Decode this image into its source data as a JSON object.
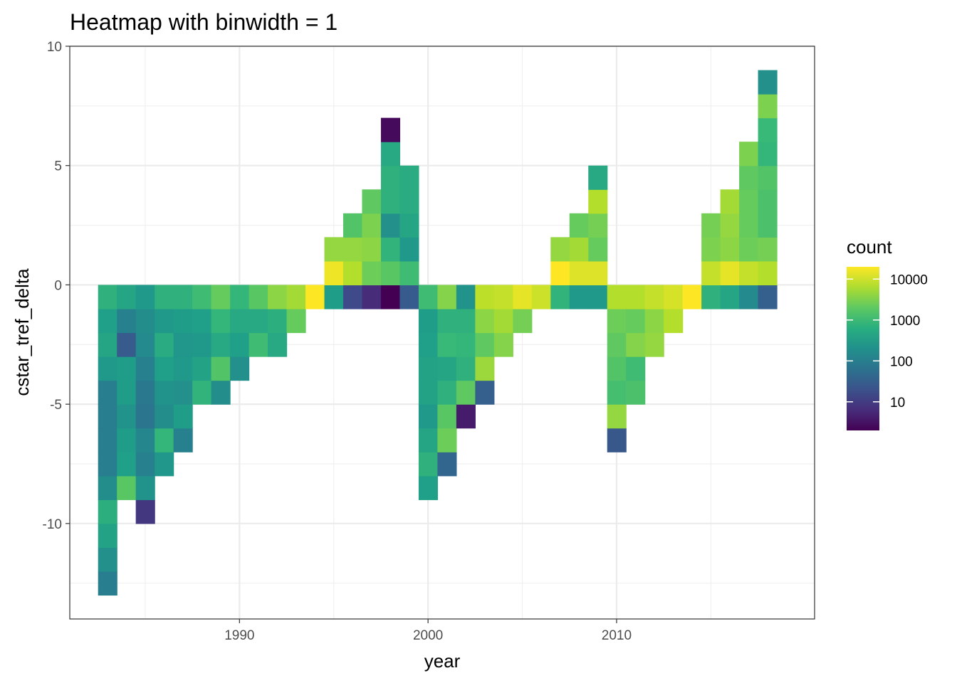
{
  "chart_data": {
    "type": "heatmap",
    "title": "Heatmap with binwidth = 1",
    "xlabel": "year",
    "ylabel": "cstar_tref_delta",
    "xlim": [
      1981.0,
      2020.5
    ],
    "ylim": [
      -14.0,
      10.0
    ],
    "x_ticks": [
      1990,
      2000,
      2010
    ],
    "y_ticks": [
      10,
      5,
      0,
      -5,
      -10
    ],
    "y_tick_labels": [
      "10",
      "5",
      "0",
      "-5",
      "-10"
    ],
    "grid": true,
    "bin_width": 1,
    "color_scale": "viridis (log10 count)",
    "legend": {
      "title": "count",
      "labels": [
        "10000",
        "1000",
        "100",
        "10"
      ],
      "values": [
        10000,
        1000,
        100,
        10
      ],
      "placement": "right"
    },
    "columns": [
      {
        "year": 1983,
        "y_min": -13,
        "log_counts": [
          2.0,
          2.3,
          2.6,
          2.8,
          2.25,
          2.0,
          2.0,
          2.0,
          2.0,
          2.45,
          2.65,
          2.55,
          2.85
        ]
      },
      {
        "year": 1984,
        "y_min": -9,
        "log_counts": [
          3.25,
          2.55,
          2.5,
          2.35,
          2.5,
          2.5,
          1.45,
          2.05,
          2.65
        ]
      },
      {
        "year": 1985,
        "y_min": -10,
        "log_counts": [
          0.95,
          2.35,
          2.05,
          2.15,
          1.85,
          1.9,
          2.05,
          2.2,
          2.25,
          2.45
        ]
      },
      {
        "year": 1986,
        "y_min": -8,
        "log_counts": [
          2.4,
          2.95,
          2.25,
          2.35,
          2.55,
          2.75,
          2.45,
          2.85
        ]
      },
      {
        "year": 1987,
        "y_min": -7,
        "log_counts": [
          2.05,
          2.5,
          2.3,
          2.45,
          2.4,
          2.5,
          2.85
        ]
      },
      {
        "year": 1988,
        "y_min": -5,
        "log_counts": [
          2.9,
          2.6,
          2.45,
          2.55,
          3.05
        ]
      },
      {
        "year": 1989,
        "y_min": -5,
        "log_counts": [
          2.25,
          3.2,
          2.7,
          2.95,
          3.35
        ]
      },
      {
        "year": 1990,
        "y_min": -4,
        "log_counts": [
          2.3,
          2.55,
          2.7,
          2.95
        ]
      },
      {
        "year": 1991,
        "y_min": -3,
        "log_counts": [
          3.05,
          2.7,
          3.25
        ]
      },
      {
        "year": 1992,
        "y_min": -3,
        "log_counts": [
          2.7,
          2.8,
          3.6
        ]
      },
      {
        "year": 1993,
        "y_min": -2,
        "log_counts": [
          3.35,
          3.75
        ]
      },
      {
        "year": 1994,
        "y_min": -1,
        "log_counts": [
          4.3
        ]
      },
      {
        "year": 1995,
        "y_min": -1,
        "log_counts": [
          2.5,
          4.2,
          3.65
        ]
      },
      {
        "year": 1996,
        "y_min": -1,
        "log_counts": [
          1.2,
          3.85,
          3.65,
          3.2
        ]
      },
      {
        "year": 1997,
        "y_min": -1,
        "log_counts": [
          0.8,
          3.4,
          3.6,
          3.5,
          3.3
        ]
      },
      {
        "year": 1998,
        "y_min": -1,
        "log_counts": [
          0.3,
          3.25,
          2.9,
          2.3,
          2.85,
          2.85,
          2.7,
          0.4
        ]
      },
      {
        "year": 1999,
        "y_min": -1,
        "log_counts": [
          1.45,
          3.05,
          2.45,
          2.65,
          2.75,
          2.75
        ]
      },
      {
        "year": 2000,
        "y_min": -9,
        "log_counts": [
          2.55,
          2.85,
          2.65,
          2.45,
          2.6,
          2.6,
          2.55,
          2.5,
          3.05
        ]
      },
      {
        "year": 2001,
        "y_min": -8,
        "log_counts": [
          1.6,
          3.4,
          3.25,
          2.85,
          2.65,
          3.0,
          2.85,
          3.55
        ]
      },
      {
        "year": 2002,
        "y_min": -6,
        "log_counts": [
          0.6,
          3.3,
          2.85,
          2.95,
          2.85,
          2.35
        ]
      },
      {
        "year": 2003,
        "y_min": -5,
        "log_counts": [
          1.5,
          3.7,
          3.3,
          3.6,
          3.9
        ]
      },
      {
        "year": 2004,
        "y_min": -3,
        "log_counts": [
          3.55,
          3.75,
          3.95
        ]
      },
      {
        "year": 2005,
        "y_min": -2,
        "log_counts": [
          3.45,
          4.15
        ]
      },
      {
        "year": 2006,
        "y_min": -1,
        "log_counts": [
          4.0
        ]
      },
      {
        "year": 2007,
        "y_min": -1,
        "log_counts": [
          2.9,
          4.3,
          3.65
        ]
      },
      {
        "year": 2008,
        "y_min": -1,
        "log_counts": [
          2.45,
          4.1,
          3.75,
          3.35
        ]
      },
      {
        "year": 2009,
        "y_min": -1,
        "log_counts": [
          2.45,
          4.1,
          3.35,
          3.45,
          3.85,
          2.7
        ]
      },
      {
        "year": 2010,
        "y_min": -7,
        "log_counts": [
          1.4,
          3.65,
          3.1,
          3.2,
          3.3,
          3.4,
          3.85
        ]
      },
      {
        "year": 2011,
        "y_min": -5,
        "log_counts": [
          3.15,
          3.05,
          3.55,
          3.35,
          3.85
        ]
      },
      {
        "year": 2012,
        "y_min": -3,
        "log_counts": [
          3.65,
          3.6,
          3.95
        ]
      },
      {
        "year": 2013,
        "y_min": -2,
        "log_counts": [
          3.85,
          4.05
        ]
      },
      {
        "year": 2014,
        "y_min": -1,
        "log_counts": [
          4.3
        ]
      },
      {
        "year": 2015,
        "y_min": -1,
        "log_counts": [
          2.85,
          3.95,
          3.5,
          3.45
        ]
      },
      {
        "year": 2016,
        "y_min": -1,
        "log_counts": [
          2.65,
          4.15,
          3.6,
          3.65,
          3.75
        ]
      },
      {
        "year": 2017,
        "y_min": -1,
        "log_counts": [
          2.2,
          3.95,
          3.4,
          3.35,
          3.35,
          3.3,
          3.5
        ]
      },
      {
        "year": 2018,
        "y_min": -1,
        "log_counts": [
          1.5,
          3.85,
          3.45,
          3.15,
          3.15,
          3.2,
          2.95,
          3.0,
          3.5,
          2.3
        ]
      }
    ]
  }
}
